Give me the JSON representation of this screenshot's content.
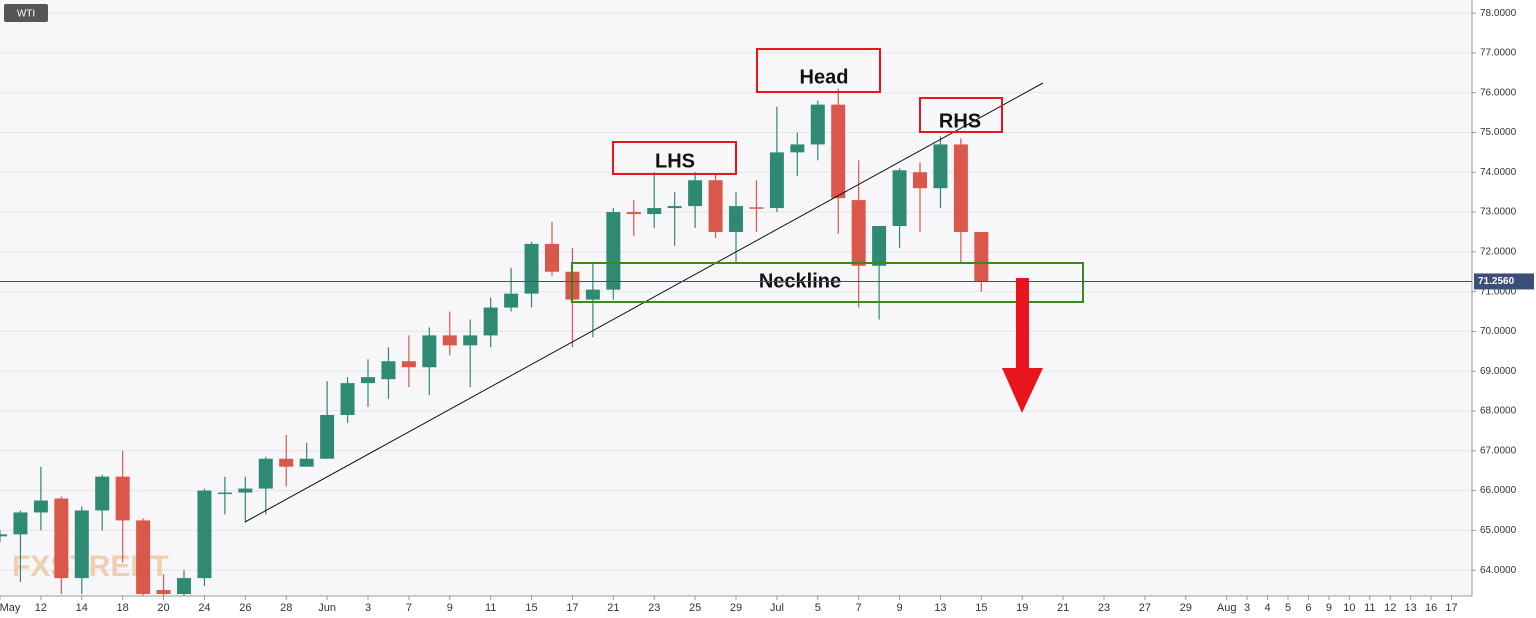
{
  "chart_data": {
    "type": "candlestick",
    "symbol": "WTI",
    "watermark": "FXSTREET",
    "annotations": {
      "head": "Head",
      "lhs": "LHS",
      "rhs": "RHS",
      "neckline": "Neckline"
    },
    "categories": [
      "May",
      null,
      "12",
      null,
      "14",
      null,
      "18",
      null,
      "20",
      null,
      "24",
      null,
      "26",
      null,
      "28",
      null,
      "Jun",
      null,
      "3",
      null,
      "7",
      null,
      "9",
      null,
      "11",
      null,
      "15",
      null,
      "17",
      null,
      "21",
      null,
      "23",
      null,
      "25",
      null,
      "29",
      null,
      "Jul",
      null,
      "5",
      null,
      "7",
      null,
      "9",
      null,
      "13",
      null,
      "15",
      null,
      "19",
      null,
      "21",
      null,
      "23",
      null,
      "27",
      null,
      "29",
      null,
      "Aug",
      "3",
      "4",
      "5",
      "6",
      "9",
      "10",
      "11",
      "12",
      "13",
      "16",
      "17"
    ],
    "open": [
      64.85,
      64.9,
      65.45,
      65.8,
      63.8,
      65.5,
      66.35,
      65.25,
      63.5,
      63.4,
      63.8,
      65.95,
      65.95,
      66.05,
      66.8,
      66.6,
      66.8,
      67.9,
      68.7,
      68.8,
      69.25,
      69.1,
      69.9,
      69.65,
      69.9,
      70.6,
      70.95,
      72.2,
      71.5,
      70.8,
      71.05,
      73.0,
      72.95,
      73.1,
      73.15,
      73.8,
      72.5,
      73.12,
      73.1,
      74.5,
      74.7,
      75.7,
      73.3,
      71.65,
      72.65,
      74.0,
      73.6,
      74.7,
      72.5,
      null,
      null,
      null,
      null,
      null,
      null,
      null,
      null,
      null,
      null,
      null,
      null,
      null,
      null,
      null,
      null,
      null,
      null,
      null,
      null,
      null,
      null,
      null
    ],
    "high": [
      65.0,
      65.5,
      66.6,
      65.85,
      65.6,
      66.4,
      67.0,
      65.3,
      63.9,
      64.0,
      66.05,
      66.35,
      66.35,
      66.85,
      67.4,
      67.2,
      68.75,
      68.85,
      69.3,
      69.6,
      69.9,
      70.1,
      70.5,
      70.3,
      70.85,
      71.6,
      72.25,
      72.75,
      72.1,
      71.75,
      73.1,
      73.3,
      74.0,
      73.5,
      74.0,
      73.95,
      73.5,
      73.8,
      75.65,
      75.0,
      75.8,
      76.1,
      74.3,
      72.65,
      74.1,
      74.25,
      74.9,
      74.85,
      72.5,
      null,
      null,
      null,
      null,
      null,
      null,
      null,
      null,
      null,
      null,
      null,
      null,
      null,
      null,
      null,
      null,
      null,
      null,
      null,
      null,
      null,
      null,
      null
    ],
    "low": [
      64.7,
      63.7,
      65.0,
      63.4,
      63.4,
      65.0,
      64.2,
      63.3,
      63.3,
      63.3,
      63.6,
      65.4,
      65.2,
      65.4,
      66.1,
      66.6,
      66.8,
      67.7,
      68.1,
      68.3,
      68.6,
      68.4,
      69.4,
      68.6,
      69.6,
      70.5,
      70.6,
      71.4,
      69.6,
      69.85,
      70.8,
      72.4,
      72.6,
      72.15,
      72.6,
      72.35,
      71.75,
      72.5,
      73.0,
      73.9,
      74.3,
      72.45,
      70.6,
      70.3,
      72.1,
      72.5,
      73.1,
      71.7,
      71.0,
      null,
      null,
      null,
      null,
      null,
      null,
      null,
      null,
      null,
      null,
      null,
      null,
      null,
      null,
      null,
      null,
      null,
      null,
      null,
      null,
      null,
      null,
      null
    ],
    "close": [
      64.9,
      65.45,
      65.75,
      63.8,
      65.5,
      66.35,
      65.25,
      63.4,
      63.4,
      63.8,
      66.0,
      65.95,
      66.05,
      66.8,
      66.6,
      66.8,
      67.9,
      68.7,
      68.85,
      69.25,
      69.1,
      69.9,
      69.65,
      69.9,
      70.6,
      70.95,
      72.2,
      71.5,
      70.8,
      71.05,
      73.0,
      72.95,
      73.1,
      73.15,
      73.8,
      72.5,
      73.15,
      73.1,
      74.5,
      74.7,
      75.7,
      73.35,
      71.65,
      72.65,
      74.05,
      73.6,
      74.7,
      72.5,
      71.256,
      null,
      null,
      null,
      null,
      null,
      null,
      null,
      null,
      null,
      null,
      null,
      null,
      null,
      null,
      null,
      null,
      null,
      null,
      null,
      null,
      null,
      null,
      null
    ],
    "up_color": "#2e8a72",
    "down_color": "#d9574b",
    "last_price": {
      "value": 71.256,
      "label": "71.2560"
    },
    "ylim": [
      63.35,
      78.33
    ],
    "yticks": [
      {
        "value": 64,
        "label": "64.0000"
      },
      {
        "value": 65,
        "label": "65.0000"
      },
      {
        "value": 66,
        "label": "66.0000"
      },
      {
        "value": 67,
        "label": "67.0000"
      },
      {
        "value": 68,
        "label": "68.0000"
      },
      {
        "value": 69,
        "label": "69.0000"
      },
      {
        "value": 70,
        "label": "70.0000"
      },
      {
        "value": 71,
        "label": "71.0000"
      },
      {
        "value": 72,
        "label": "72.0000"
      },
      {
        "value": 73,
        "label": "73.0000"
      },
      {
        "value": 74,
        "label": "74.0000"
      },
      {
        "value": 75,
        "label": "75.0000"
      },
      {
        "value": 76,
        "label": "76.0000"
      },
      {
        "value": 77,
        "label": "77.0000"
      },
      {
        "value": 78,
        "label": "78.0000"
      }
    ],
    "grid": true
  }
}
